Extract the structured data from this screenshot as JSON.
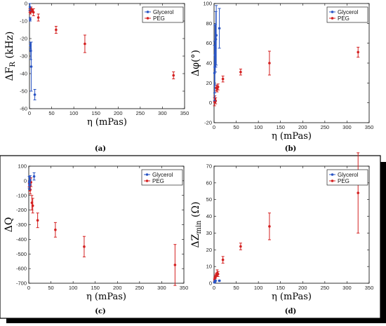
{
  "figure": {
    "panel_frame_color": "#000000",
    "glycerol_color": "#2a55c4",
    "peg_color": "#d42020"
  },
  "chart_data": [
    {
      "type": "scatter",
      "caption": "(a)",
      "xlabel": "η (mPas)",
      "ylabel": "ΔF_R (kHz)",
      "xlim": [
        0,
        350
      ],
      "ylim": [
        -60,
        0
      ],
      "xticks": [
        0,
        50,
        100,
        150,
        200,
        250,
        300,
        350
      ],
      "yticks": [
        -60,
        -50,
        -40,
        -30,
        -20,
        -10,
        0
      ],
      "legend": [
        "Glycerol",
        "PEG"
      ],
      "legend_position": "top-right",
      "grid": false,
      "series": [
        {
          "name": "Glycerol",
          "x": [
            1,
            1.5,
            2,
            3,
            4,
            12
          ],
          "y": [
            -2,
            -9,
            -24,
            -27,
            -36,
            -52
          ],
          "err": [
            2,
            1,
            2,
            5,
            14,
            3
          ]
        },
        {
          "name": "PEG",
          "x": [
            1,
            2,
            3.5,
            5,
            7,
            9,
            20,
            60,
            125,
            325
          ],
          "y": [
            -4,
            -5,
            -3,
            -4,
            -4,
            -5,
            -8,
            -15,
            -23,
            -41
          ],
          "err": [
            1,
            1,
            1,
            1,
            1,
            2,
            2,
            2,
            5,
            2
          ]
        }
      ]
    },
    {
      "type": "scatter",
      "caption": "(b)",
      "xlabel": "η (mPas)",
      "ylabel": "Δφ(°)",
      "xlim": [
        0,
        350
      ],
      "ylim": [
        -20,
        100
      ],
      "xticks": [
        0,
        50,
        100,
        150,
        200,
        250,
        300,
        350
      ],
      "yticks": [
        -20,
        0,
        20,
        40,
        60,
        80,
        100
      ],
      "legend": [
        "Glycerol",
        "PEG"
      ],
      "legend_position": "top-right",
      "grid": false,
      "series": [
        {
          "name": "Glycerol",
          "x": [
            1,
            1.5,
            2,
            3,
            4,
            5,
            12
          ],
          "y": [
            30,
            36,
            48,
            55,
            64,
            68,
            75
          ],
          "err": [
            28,
            26,
            30,
            24,
            28,
            30,
            20
          ]
        },
        {
          "name": "PEG",
          "x": [
            1,
            2,
            3.5,
            5,
            7,
            9,
            20,
            60,
            125,
            325
          ],
          "y": [
            1,
            4,
            2,
            15,
            14,
            16,
            24,
            31,
            40,
            51
          ],
          "err": [
            4,
            3,
            3,
            3,
            3,
            3,
            3,
            3,
            12,
            5
          ]
        }
      ]
    },
    {
      "type": "scatter",
      "caption": "(c)",
      "xlabel": "η (mPas)",
      "ylabel": "ΔQ",
      "xlim": [
        0,
        350
      ],
      "ylim": [
        -700,
        100
      ],
      "xticks": [
        0,
        50,
        100,
        150,
        200,
        250,
        300,
        350
      ],
      "yticks": [
        -700,
        -600,
        -500,
        -400,
        -300,
        -200,
        -100,
        0,
        100
      ],
      "legend": [
        "Glycerol",
        "PEG"
      ],
      "legend_position": "top-right",
      "grid": false,
      "series": [
        {
          "name": "Glycerol",
          "x": [
            1,
            1.5,
            2,
            3,
            12
          ],
          "y": [
            -10,
            -30,
            -5,
            5,
            30
          ],
          "err": [
            40,
            30,
            30,
            30,
            25
          ]
        },
        {
          "name": "PEG",
          "x": [
            1,
            2,
            3.5,
            5,
            7,
            9,
            20,
            60,
            125,
            330
          ],
          "y": [
            -20,
            -40,
            -60,
            -10,
            -150,
            -170,
            -270,
            -335,
            -450,
            -575
          ],
          "err": [
            20,
            30,
            30,
            30,
            50,
            50,
            50,
            50,
            70,
            140
          ]
        }
      ]
    },
    {
      "type": "scatter",
      "caption": "(d)",
      "xlabel": "η (mPas)",
      "ylabel": "ΔZ_min (Ω)",
      "xlim": [
        0,
        350
      ],
      "ylim": [
        0,
        70
      ],
      "xticks": [
        0,
        50,
        100,
        150,
        200,
        250,
        300,
        350
      ],
      "yticks": [
        0,
        10,
        20,
        30,
        40,
        50,
        60,
        70
      ],
      "legend": [
        "Glycerol",
        "PEG"
      ],
      "legend_position": "top-right",
      "grid": false,
      "series": [
        {
          "name": "Glycerol",
          "x": [
            1,
            2,
            3,
            12
          ],
          "y": [
            0.5,
            1,
            1.5,
            1.5
          ],
          "err": [
            0.3,
            0.3,
            0.3,
            0.3
          ]
        },
        {
          "name": "PEG",
          "x": [
            1,
            2,
            3.5,
            5,
            7,
            9,
            20,
            60,
            125,
            325
          ],
          "y": [
            2,
            3,
            4,
            5,
            6,
            5.5,
            14,
            22,
            34,
            54
          ],
          "err": [
            1,
            1,
            1,
            1,
            2,
            1.5,
            2,
            2,
            8,
            24
          ]
        }
      ]
    }
  ]
}
